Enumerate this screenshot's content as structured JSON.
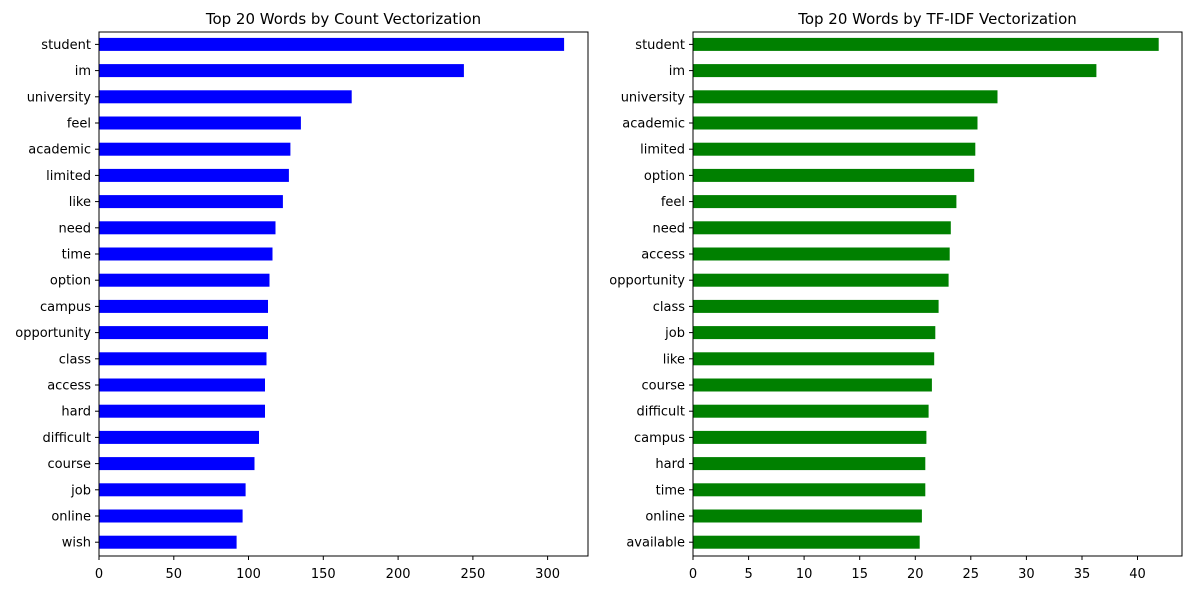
{
  "chart_data": [
    {
      "type": "bar",
      "orientation": "horizontal",
      "title": "Top 20 Words by Count Vectorization",
      "xlabel": "",
      "ylabel": "",
      "xlim": [
        0,
        327
      ],
      "xticks": [
        0,
        50,
        100,
        150,
        200,
        250,
        300
      ],
      "color": "#0000ff",
      "grid": false,
      "categories": [
        "student",
        "im",
        "university",
        "feel",
        "academic",
        "limited",
        "like",
        "need",
        "time",
        "option",
        "campus",
        "opportunity",
        "class",
        "access",
        "hard",
        "difficult",
        "course",
        "job",
        "online",
        "wish"
      ],
      "values": [
        311,
        244,
        169,
        135,
        128,
        127,
        123,
        118,
        116,
        114,
        113,
        113,
        112,
        111,
        111,
        107,
        104,
        98,
        96,
        92
      ]
    },
    {
      "type": "bar",
      "orientation": "horizontal",
      "title": "Top 20 Words by TF-IDF Vectorization",
      "xlabel": "",
      "ylabel": "",
      "xlim": [
        0,
        44
      ],
      "xticks": [
        0,
        5,
        10,
        15,
        20,
        25,
        30,
        35,
        40
      ],
      "color": "#008000",
      "grid": false,
      "categories": [
        "student",
        "im",
        "university",
        "academic",
        "limited",
        "option",
        "feel",
        "need",
        "access",
        "opportunity",
        "class",
        "job",
        "like",
        "course",
        "difficult",
        "campus",
        "hard",
        "time",
        "online",
        "available"
      ],
      "values": [
        41.9,
        36.3,
        27.4,
        25.6,
        25.4,
        25.3,
        23.7,
        23.2,
        23.1,
        23.0,
        22.1,
        21.8,
        21.7,
        21.5,
        21.2,
        21.0,
        20.9,
        20.9,
        20.6,
        20.4
      ]
    }
  ]
}
